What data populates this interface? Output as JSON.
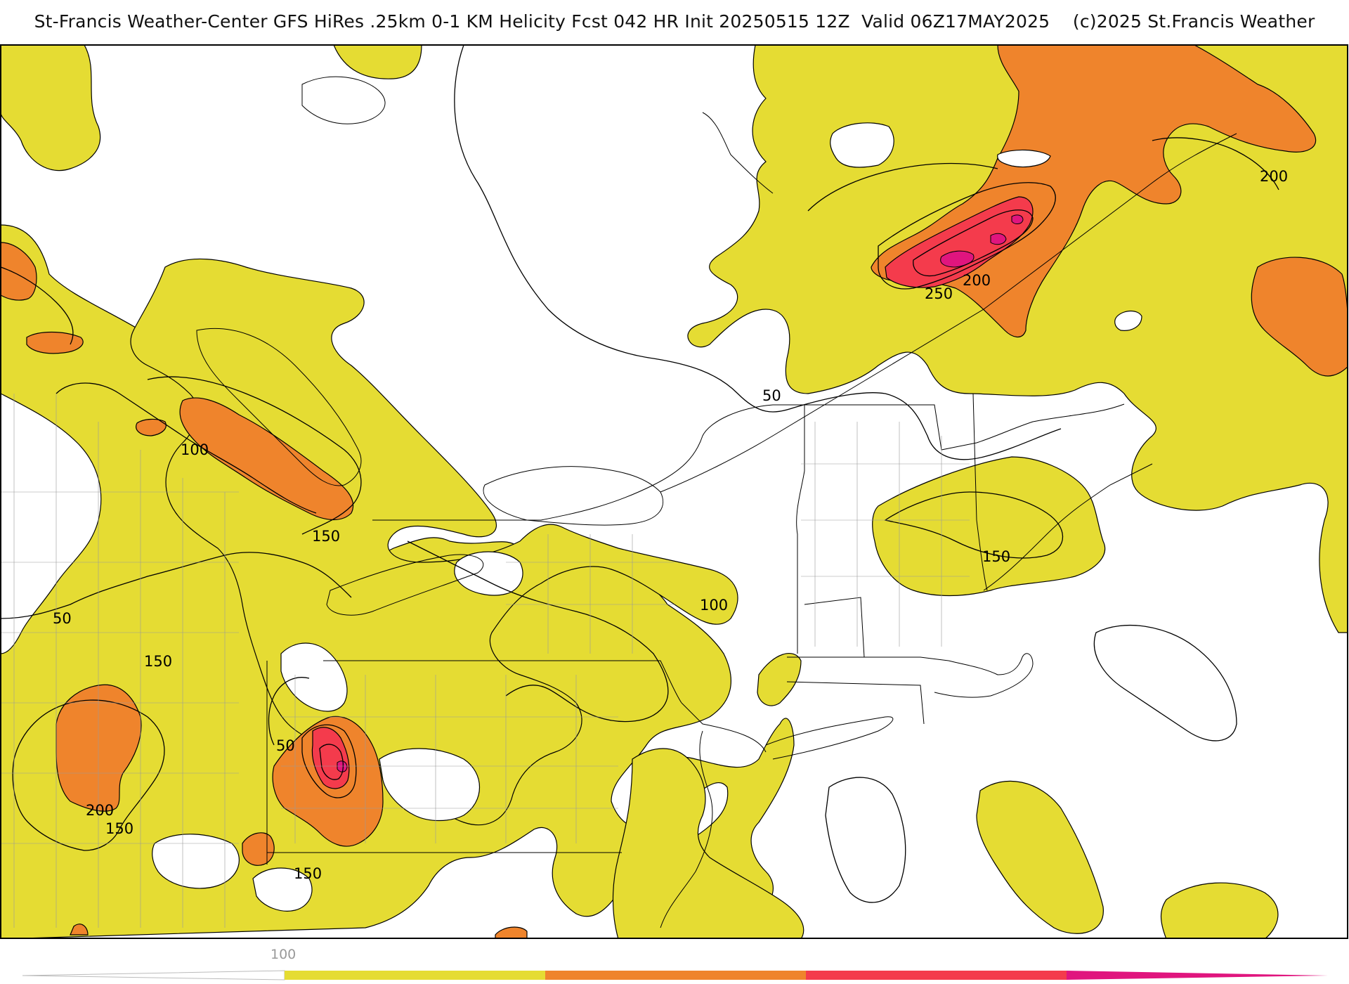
{
  "title": "St-Francis Weather-Center GFS HiRes .25km 0-1 KM Helicity Fcst 042 HR Init 20250515 12Z  Valid 06Z17MAY2025    (c)2025 St.Francis Weather",
  "fill_colors": {
    "band_100_150": "#e5dc33",
    "band_150_200": "#ef842c",
    "band_200_250": "#f43b4c",
    "band_250_300": "#e0157e",
    "band_300_plus": "#f0067a",
    "contour": "#000000",
    "boundary": "#9a9a9a"
  },
  "contour_labels": {
    "l50_north": "50",
    "l50_west": "50",
    "l50_south": "50",
    "l100_north": "100",
    "l100_central": "100",
    "l150_lake": "150",
    "l150_west": "150",
    "l150_sw": "150",
    "l150_south": "150",
    "l150_newengland": "150",
    "l200_east": "200",
    "l200_quebec": "200",
    "l200_sw": "200",
    "l250_quebec": "250"
  },
  "colorbar": {
    "label": "100",
    "segments": [
      "#e5dc33",
      "#ef842c",
      "#f43b4c",
      "#e0157e"
    ]
  }
}
